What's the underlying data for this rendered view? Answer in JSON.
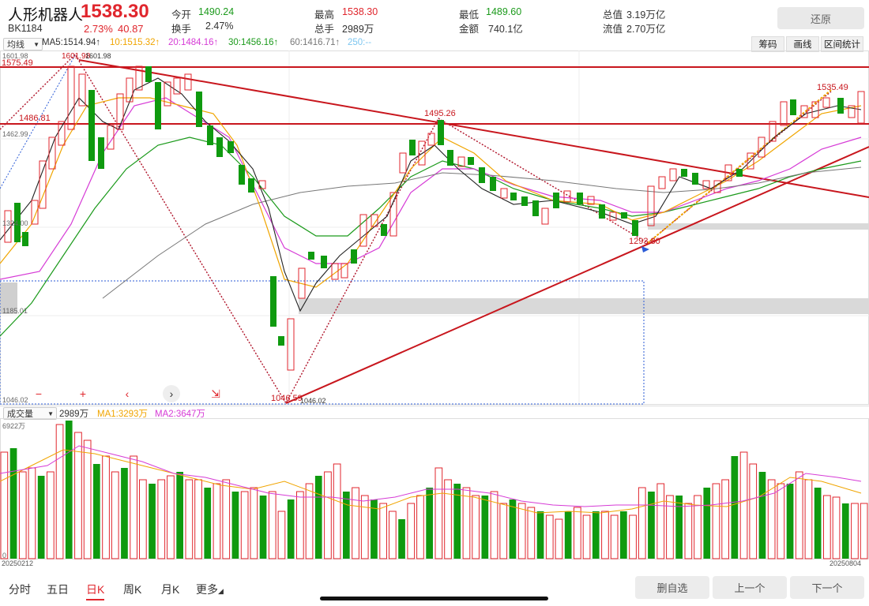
{
  "header": {
    "title": "人形机器人",
    "price": "1538.30",
    "code": "BK1184",
    "change_pct": "2.73%",
    "change_amt": "40.87",
    "stats": [
      {
        "label": "今开",
        "value": "1490.24",
        "color": "green"
      },
      {
        "label": "最高",
        "value": "1538.30",
        "color": "red"
      },
      {
        "label": "最低",
        "value": "1489.60",
        "color": "green"
      },
      {
        "label": "总值",
        "value": "3.19万亿",
        "color": "dark"
      },
      {
        "label": "换手",
        "value": "2.47%",
        "color": "dark"
      },
      {
        "label": "总手",
        "value": "2989万",
        "color": "dark"
      },
      {
        "label": "金额",
        "value": "740.1亿",
        "color": "dark"
      },
      {
        "label": "流值",
        "value": "2.70万亿",
        "color": "dark"
      }
    ],
    "restore_label": "还原"
  },
  "ma_bar": {
    "select_value": "均线",
    "items": [
      {
        "text": "MA5:1514.94↑",
        "color": "#222222"
      },
      {
        "text": "10:1515.32↑",
        "color": "#f0a500"
      },
      {
        "text": "20:1484.16↑",
        "color": "#d63bd6"
      },
      {
        "text": "30:1456.16↑",
        "color": "#1b9a1b"
      },
      {
        "text": "60:1416.71↑",
        "color": "#777777"
      },
      {
        "text": "250:--",
        "color": "#7cc6f0"
      }
    ],
    "tools": [
      "筹码",
      "画线",
      "区间统计"
    ]
  },
  "price_axis": {
    "top": "1601.98",
    "mid": "1462.99",
    "low1": "1324.00",
    "low2": "1185.01",
    "bottom": "1046.02"
  },
  "annotations": {
    "high": "1601.98",
    "high_label": "1601.98",
    "left_level_1": "1575.49",
    "left_level_2": "1486.81",
    "peak_mid": "1495.26",
    "low": "1046.59",
    "low_right": "1046.02",
    "right_low": "1293.80",
    "right_high": "1535.49"
  },
  "zoom_controls": [
    "−",
    "+",
    "‹",
    "›",
    "⇲"
  ],
  "volume": {
    "select_value": "成交量",
    "value": "2989万",
    "ma1": "MA1:3293万",
    "ma2": "MA2:3647万",
    "axis_top": "6922万",
    "axis_bottom": "0",
    "date_start": "20250212",
    "date_end": "20250804"
  },
  "nav": {
    "items": [
      "分时",
      "五日",
      "日K",
      "周K",
      "月K",
      "更多"
    ],
    "active": "日K"
  },
  "buttons": {
    "delete": "删自选",
    "prev": "上一个",
    "next": "下一个"
  },
  "colors": {
    "up": "#e0262d",
    "down": "#0f9a0f",
    "ma5": "#222222",
    "ma10": "#f0a500",
    "ma20": "#d63bd6",
    "ma30": "#1b9a1b",
    "ma60": "#777777"
  }
}
